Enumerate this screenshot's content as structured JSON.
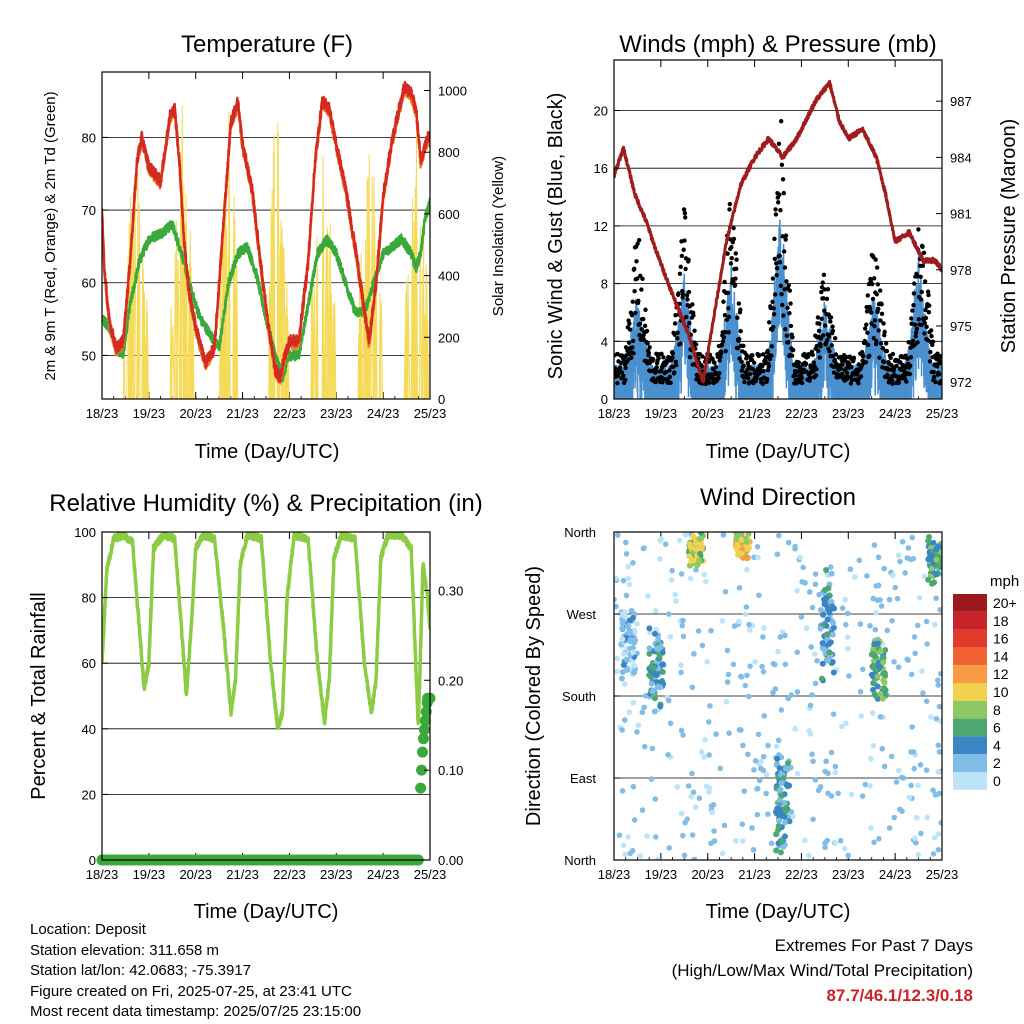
{
  "panels": {
    "temperature": {
      "title": "Temperature (F)",
      "xlabel": "Time (Day/UTC)",
      "ylabel_left": "2m & 9m T (Red, Orange) & 2m Td (Green)",
      "ylabel_right": "Solar Insolation (Yellow)"
    },
    "winds": {
      "title": "Winds (mph) & Pressure (mb)",
      "xlabel": "Time (Day/UTC)",
      "ylabel_left": "Sonic Wind & Gust (Blue, Black)",
      "ylabel_right": "Station Pressure (Maroon)"
    },
    "humidity": {
      "title": "Relative Humidity (%) & Precipitation (in)",
      "xlabel": "Time (Day/UTC)",
      "ylabel_left": "Percent & Total Rainfall"
    },
    "direction": {
      "title": "Wind Direction",
      "xlabel": "Time (Day/UTC)",
      "ylabel_left": "Direction (Colored By Speed)",
      "legend_title": "mph"
    }
  },
  "info": {
    "location": "Location: Deposit",
    "elevation": "Station elevation: 311.658 m",
    "latlon": "Station lat/lon: 42.0683; -75.3917",
    "created": "Figure created on Fri, 2025-07-25, at 23:41 UTC",
    "recent": "Most recent data timestamp: 2025/07/25 23:15:00"
  },
  "extremes": {
    "title": "Extremes For Past 7 Days",
    "subtitle": "(High/Low/Max Wind/Total Precipitation)",
    "values": "87.7/46.1/12.3/0.18"
  },
  "colors": {
    "temp_2m": "#d42a20",
    "temp_9m": "#f07a28",
    "dewpoint": "#3aa83a",
    "solar": "#f5da58",
    "wind": "#4a90cf",
    "gust": "#000000",
    "pressure": "#9e1c1e",
    "humidity": "#8ccc44",
    "rain": "#3aa83a",
    "extremes": "#c8242c"
  },
  "chart_data": [
    {
      "type": "line",
      "x_ticks": [
        "18/23",
        "19/23",
        "20/23",
        "21/23",
        "22/23",
        "23/23",
        "24/23",
        "25/23"
      ],
      "y_left": {
        "ticks": [
          50,
          60,
          70,
          80
        ],
        "range": [
          44,
          89
        ]
      },
      "y_right": {
        "ticks": [
          0,
          200,
          400,
          600,
          800,
          1000
        ],
        "range": [
          0,
          1060
        ]
      },
      "grid": true,
      "series": [
        {
          "axis": "left",
          "color": "#d42a20",
          "x": [
            0,
            0.05,
            0.15,
            0.3,
            0.45,
            0.6,
            0.75,
            0.85,
            1.0,
            1.25,
            1.45,
            1.55,
            1.65,
            1.75,
            1.85,
            2.0,
            2.2,
            2.4,
            2.6,
            2.75,
            2.9,
            3.0,
            3.2,
            3.4,
            3.55,
            3.7,
            3.8,
            3.9,
            4.0,
            4.2,
            4.4,
            4.55,
            4.7,
            4.85,
            5.0,
            5.2,
            5.45,
            5.6,
            5.7,
            5.85,
            6.0,
            6.2,
            6.45,
            6.6,
            6.7,
            6.8,
            6.9,
            6.95,
            7.0
          ],
          "y": [
            70,
            62,
            55,
            51,
            52,
            63,
            77,
            80,
            76,
            74,
            83,
            84,
            77,
            66,
            59,
            54,
            49,
            51,
            69,
            82,
            85,
            79,
            73,
            62,
            54,
            48,
            47,
            50,
            52,
            52,
            63,
            77,
            85,
            84,
            79,
            73,
            63,
            56,
            52,
            60,
            72,
            80,
            87,
            86,
            84,
            77,
            79,
            80,
            80
          ]
        },
        {
          "axis": "left",
          "color": "#3aa83a",
          "x": [
            0,
            0.15,
            0.3,
            0.45,
            0.6,
            0.8,
            1.0,
            1.3,
            1.5,
            1.7,
            1.9,
            2.1,
            2.3,
            2.5,
            2.7,
            2.9,
            3.1,
            3.3,
            3.5,
            3.7,
            3.85,
            4.0,
            4.2,
            4.4,
            4.6,
            4.8,
            5.0,
            5.2,
            5.4,
            5.6,
            5.8,
            6.0,
            6.2,
            6.4,
            6.6,
            6.7,
            6.8,
            6.9,
            7.0
          ],
          "y": [
            55,
            54,
            51,
            50,
            57,
            63,
            66,
            67,
            68,
            64,
            59,
            55,
            53,
            51,
            60,
            64,
            65,
            61,
            55,
            50,
            47,
            50,
            50,
            57,
            64,
            66,
            64,
            60,
            56,
            56,
            60,
            64,
            65,
            66,
            64,
            62,
            64,
            69,
            71
          ]
        },
        {
          "axis": "right",
          "color": "#f5da58",
          "name": "",
          "peak_day_offsets": [
            0.72,
            1.72,
            2.72,
            3.72,
            4.72,
            5.72,
            6.72
          ],
          "peak_values": [
            1000,
            1010,
            1020,
            1030,
            1010,
            1000,
            980
          ]
        }
      ]
    },
    {
      "type": "line",
      "x_ticks": [
        "18/23",
        "19/23",
        "20/23",
        "21/23",
        "22/23",
        "23/23",
        "24/23",
        "25/23"
      ],
      "y_left": {
        "ticks": [
          0,
          4,
          8,
          12,
          16,
          20
        ],
        "range": [
          0,
          23.5
        ]
      },
      "y_right": {
        "ticks": [
          972,
          975,
          978,
          981,
          984,
          987
        ],
        "range": [
          971.1,
          989.2
        ]
      },
      "grid": true,
      "series": [
        {
          "axis": "right",
          "color": "#9e1c1e",
          "x": [
            0,
            0.2,
            0.45,
            0.7,
            0.9,
            1.2,
            1.6,
            1.9,
            2.0,
            2.2,
            2.4,
            2.7,
            3.0,
            3.3,
            3.6,
            3.9,
            4.3,
            4.6,
            4.8,
            5.0,
            5.3,
            5.6,
            5.8,
            6.0,
            6.3,
            6.6,
            6.85,
            7.0
          ],
          "y": [
            983,
            984.5,
            982,
            980.5,
            979,
            977,
            974.5,
            972,
            973.5,
            976.5,
            979.5,
            982.5,
            984,
            985,
            984,
            985,
            987,
            988,
            986,
            985,
            985.5,
            984,
            982,
            979.5,
            980,
            978.5,
            978.5,
            978
          ]
        },
        {
          "axis": "left",
          "color": "#4a90cf",
          "name": "",
          "peak_day_offsets": [
            0.5,
            1.5,
            2.5,
            3.55,
            4.5,
            5.55,
            6.5
          ],
          "peak_values": [
            7,
            8,
            9,
            13,
            6.5,
            7,
            9.5
          ]
        },
        {
          "axis": "left",
          "color": "#000000",
          "name": "",
          "peak_day_offsets": [
            0.5,
            1.5,
            2.5,
            3.55,
            4.5,
            5.55,
            6.55
          ],
          "peak_values": [
            12,
            13,
            15,
            21,
            9,
            12,
            14
          ]
        }
      ]
    },
    {
      "type": "line",
      "x_ticks": [
        "18/23",
        "19/23",
        "20/23",
        "21/23",
        "22/23",
        "23/23",
        "24/23",
        "25/23"
      ],
      "y_left": {
        "ticks": [
          0,
          20,
          40,
          60,
          80,
          100
        ],
        "range": [
          0,
          100
        ]
      },
      "y_right": {
        "ticks": [
          0.0,
          0.1,
          0.2,
          0.3
        ],
        "range": [
          0,
          0.365
        ]
      },
      "grid": true,
      "series": [
        {
          "axis": "left",
          "color": "#8ccc44",
          "x": [
            0,
            0.1,
            0.25,
            0.45,
            0.65,
            0.8,
            0.9,
            1.0,
            1.1,
            1.3,
            1.55,
            1.7,
            1.8,
            1.9,
            2.0,
            2.15,
            2.4,
            2.6,
            2.75,
            2.85,
            2.95,
            3.1,
            3.4,
            3.6,
            3.75,
            3.85,
            3.95,
            4.1,
            4.4,
            4.6,
            4.75,
            4.85,
            4.95,
            5.1,
            5.4,
            5.6,
            5.75,
            5.85,
            5.95,
            6.1,
            6.4,
            6.6,
            6.75,
            6.85,
            6.95,
            7.0
          ],
          "y": [
            60,
            88,
            98,
            99,
            97,
            70,
            52,
            60,
            95,
            99,
            98,
            70,
            50,
            70,
            95,
            99,
            98,
            70,
            45,
            55,
            90,
            99,
            98,
            60,
            40,
            45,
            80,
            99,
            98,
            60,
            42,
            55,
            92,
            99,
            98,
            60,
            45,
            55,
            92,
            99,
            99,
            95,
            40,
            90,
            80,
            70
          ]
        },
        {
          "axis": "right",
          "color": "#3aa83a",
          "name": "",
          "x": [
            0,
            1,
            2,
            3,
            4,
            5,
            6,
            6.75,
            6.8,
            6.82,
            6.84,
            6.86,
            6.88,
            6.9,
            6.92,
            6.94,
            7.0
          ],
          "y": [
            0,
            0,
            0,
            0,
            0,
            0,
            0,
            0.0,
            0.08,
            0.1,
            0.12,
            0.135,
            0.145,
            0.155,
            0.165,
            0.175,
            0.18
          ]
        }
      ]
    },
    {
      "type": "scatter",
      "x_ticks": [
        "18/23",
        "19/23",
        "20/23",
        "21/23",
        "22/23",
        "23/23",
        "24/23",
        "25/23"
      ],
      "y_ticks": [
        "North",
        "East",
        "South",
        "West",
        "North"
      ],
      "y_tick_values": [
        0,
        90,
        180,
        270,
        360
      ],
      "grid": true,
      "legend": {
        "labels": [
          "20+",
          "18",
          "16",
          "14",
          "12",
          "10",
          "8",
          "6",
          "4",
          "2",
          "0"
        ],
        "colors": [
          "#9c1a1e",
          "#c8252a",
          "#e03a2c",
          "#f06232",
          "#f99b42",
          "#f1d14e",
          "#8cc864",
          "#4ca870",
          "#3a85c4",
          "#82bde8",
          "#bde3f8"
        ]
      },
      "clusters": [
        {
          "day": 0.3,
          "dir_center": 240,
          "dir_spread": 45,
          "speed": 2
        },
        {
          "day": 0.9,
          "dir_center": 210,
          "dir_spread": 50,
          "speed": 4
        },
        {
          "day": 1.75,
          "dir_center": 340,
          "dir_spread": 20,
          "speed": 8
        },
        {
          "day": 2.75,
          "dir_center": 345,
          "dir_spread": 18,
          "speed": 10
        },
        {
          "day": 3.6,
          "dir_center": 60,
          "dir_spread": 60,
          "speed": 4
        },
        {
          "day": 4.55,
          "dir_center": 260,
          "dir_spread": 80,
          "speed": 4
        },
        {
          "day": 5.65,
          "dir_center": 210,
          "dir_spread": 40,
          "speed": 6
        },
        {
          "day": 6.85,
          "dir_center": 330,
          "dir_spread": 30,
          "speed": 6
        }
      ]
    }
  ]
}
